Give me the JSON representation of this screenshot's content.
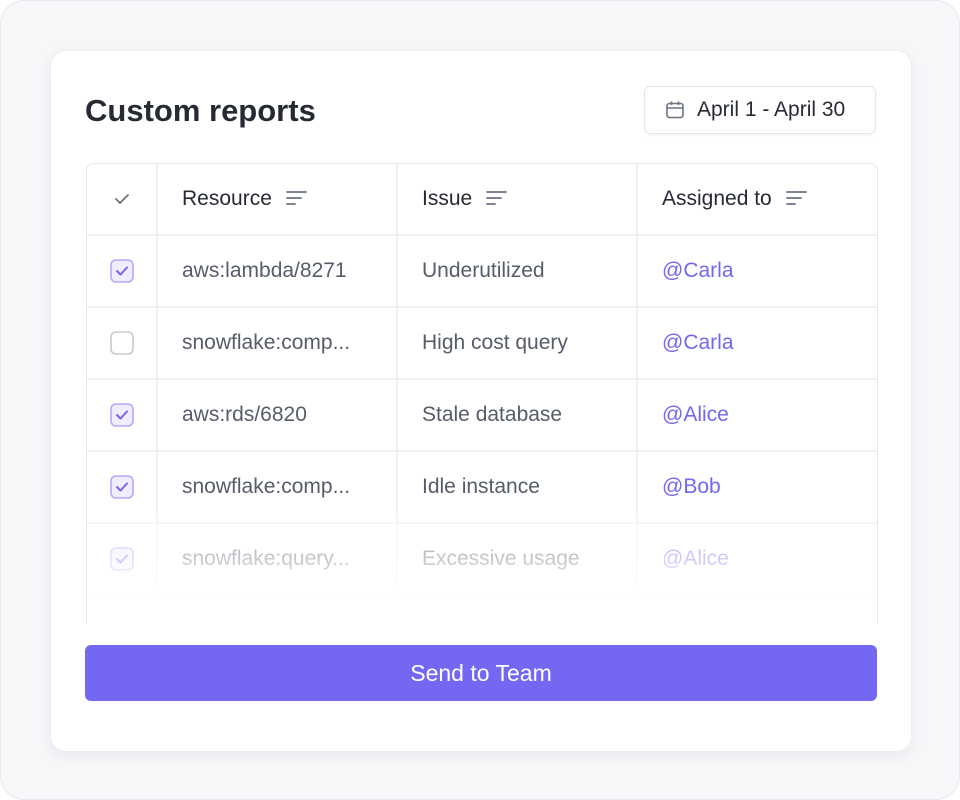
{
  "header": {
    "title": "Custom reports",
    "date_range": "April 1 - April 30"
  },
  "table": {
    "columns": [
      "Resource",
      "Issue",
      "Assigned to"
    ],
    "rows": [
      {
        "checked": true,
        "resource": "aws:lambda/8271",
        "issue": "Underutilized",
        "assignee": "@Carla"
      },
      {
        "checked": false,
        "resource": "snowflake:comp...",
        "issue": "High cost query",
        "assignee": "@Carla"
      },
      {
        "checked": true,
        "resource": "aws:rds/6820",
        "issue": "Stale database",
        "assignee": "@Alice"
      },
      {
        "checked": true,
        "resource": "snowflake:comp...",
        "issue": "Idle instance",
        "assignee": "@Bob"
      },
      {
        "checked": true,
        "resource": "snowflake:query...",
        "issue": "Excessive usage",
        "assignee": "@Alice"
      }
    ]
  },
  "action": {
    "label": "Send to Team"
  }
}
